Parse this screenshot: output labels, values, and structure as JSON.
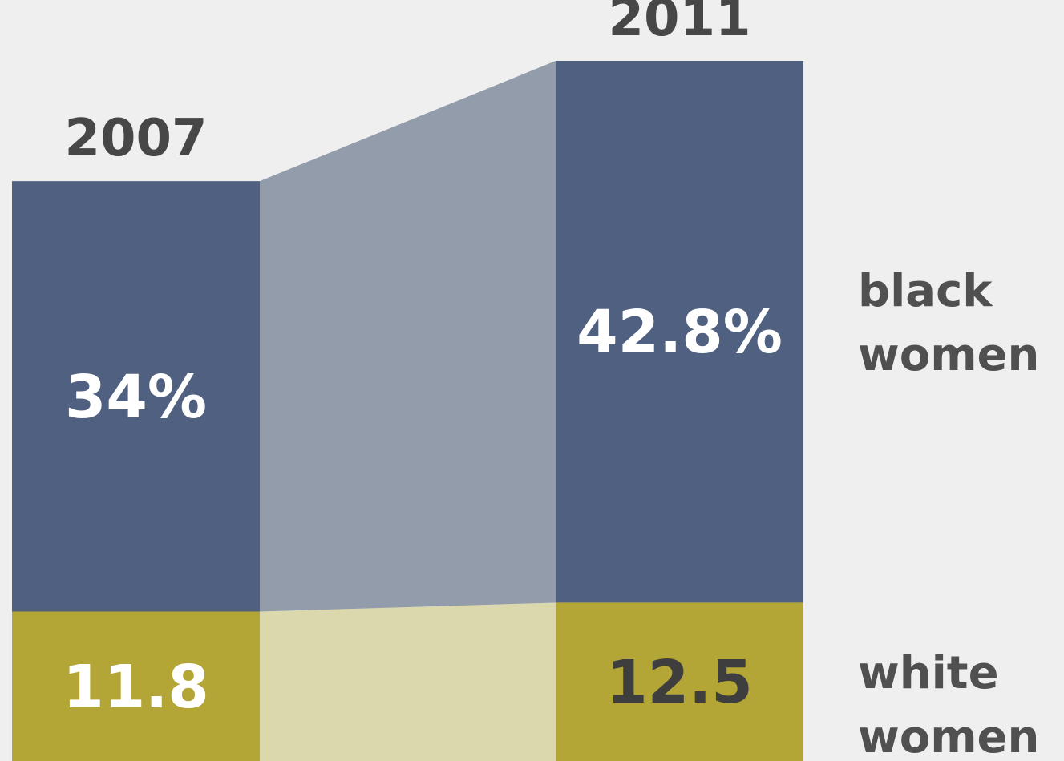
{
  "chart_data": {
    "type": "bar",
    "categories": [
      "2007",
      "2011"
    ],
    "series": [
      {
        "name": "black women",
        "values": [
          34,
          42.8
        ],
        "labels": [
          "34%",
          "42.8%"
        ],
        "color": "#506080",
        "connector_color": "#929cab",
        "label_color": "#ffffff"
      },
      {
        "name": "white women",
        "values": [
          11.8,
          12.5
        ],
        "labels": [
          "11.8",
          "12.5"
        ],
        "color": "#b3a636",
        "connector_color": "#dcd8ad",
        "label_colors": [
          "#ffffff",
          "#3e3e3e"
        ]
      }
    ],
    "legend_lines": [
      [
        "black",
        "women"
      ],
      [
        "white",
        "women"
      ]
    ],
    "legend_position": "right",
    "stacked": true,
    "grid": false,
    "axes_visible": false
  }
}
